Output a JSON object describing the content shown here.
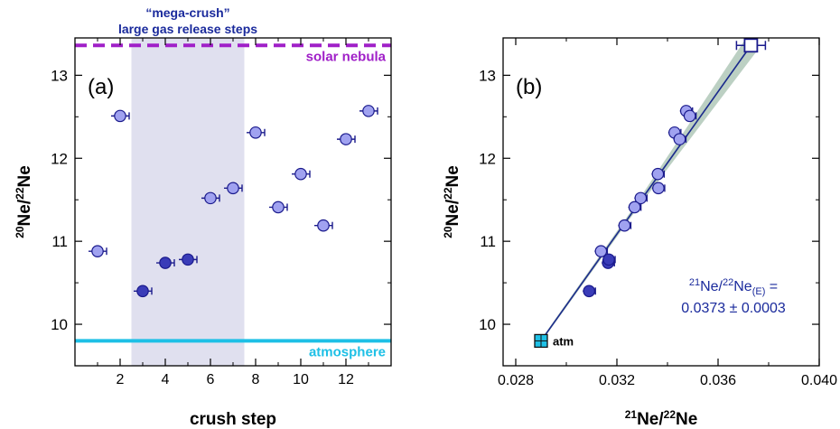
{
  "chart_data": [
    {
      "type": "scatter",
      "panel_label": "(a)",
      "xlabel": "crush step",
      "ylabel_main": "Ne/",
      "ylabel_sup1": "20",
      "ylabel_sup2": "22",
      "ylabel_tail": "Ne",
      "xlim": [
        0,
        14
      ],
      "ylim": [
        9.5,
        13.45
      ],
      "xticks": [
        2,
        4,
        6,
        8,
        10,
        12
      ],
      "yticks": [
        10,
        11,
        12,
        13
      ],
      "grid": false,
      "shaded_region": {
        "x": [
          2.5,
          7.5
        ],
        "label_line1": "“mega-crush”",
        "label_line2": "large gas release steps",
        "color": "#e0e0ef"
      },
      "reference_lines": [
        {
          "name": "solar nebula",
          "y": 13.36,
          "style": "dashed",
          "color": "#a020c8"
        },
        {
          "name": "atmosphere",
          "y": 9.8,
          "style": "solid",
          "color": "#1ec0e6"
        }
      ],
      "series": [
        {
          "light": [
            {
              "x": 1,
              "y": 10.88
            },
            {
              "x": 2,
              "y": 12.51
            },
            {
              "x": 6,
              "y": 11.52
            },
            {
              "x": 7,
              "y": 11.64
            },
            {
              "x": 8,
              "y": 12.31
            },
            {
              "x": 9,
              "y": 11.41
            },
            {
              "x": 10,
              "y": 11.81
            },
            {
              "x": 11,
              "y": 11.19
            },
            {
              "x": 12,
              "y": 12.23
            },
            {
              "x": 13,
              "y": 12.57
            }
          ],
          "dark": [
            {
              "x": 3,
              "y": 10.4
            },
            {
              "x": 4,
              "y": 10.74
            },
            {
              "x": 5,
              "y": 10.78
            }
          ]
        }
      ]
    },
    {
      "type": "scatter",
      "panel_label": "(b)",
      "xlabel_sup1": "21",
      "xlabel_main": "Ne/",
      "xlabel_sup2": "22",
      "xlabel_tail": "Ne",
      "ylabel_main": "Ne/",
      "ylabel_sup1": "20",
      "ylabel_sup2": "22",
      "ylabel_tail": "Ne",
      "xlim": [
        0.0275,
        0.04
      ],
      "ylim": [
        9.5,
        13.45
      ],
      "xticks": [
        0.028,
        0.032,
        0.036,
        0.04
      ],
      "xtick_labels": [
        "0.028",
        "0.032",
        "0.036",
        "0.040"
      ],
      "yticks": [
        10,
        11,
        12,
        13
      ],
      "grid": false,
      "fit_line": {
        "x": [
          0.029,
          0.0373
        ],
        "y": [
          9.8,
          13.36
        ],
        "color": "#1a2a8c",
        "band_color": "#b0c8b8"
      },
      "annotation_line1_sup": "21",
      "annotation_line1_main": "Ne/",
      "annotation_line1_sup2": "22",
      "annotation_line1_tail": "Ne",
      "annotation_line1_sub": "(E)",
      "annotation_line1_eq": " =",
      "annotation_line2": "0.0373 ± 0.0003",
      "atm_label": "atm",
      "endmembers": [
        {
          "name": "atm",
          "x": 0.029,
          "y": 9.8,
          "color": "#1ec0e6"
        },
        {
          "name": "E",
          "x": 0.0373,
          "y": 13.36,
          "color": "#ffffff"
        }
      ],
      "series": [
        {
          "light": [
            {
              "x": 0.03137,
              "y": 10.88
            },
            {
              "x": 0.03474,
              "y": 12.57
            },
            {
              "x": 0.03488,
              "y": 12.51
            },
            {
              "x": 0.03428,
              "y": 12.31
            },
            {
              "x": 0.03448,
              "y": 12.23
            },
            {
              "x": 0.03362,
              "y": 11.81
            },
            {
              "x": 0.03364,
              "y": 11.64
            },
            {
              "x": 0.03294,
              "y": 11.52
            },
            {
              "x": 0.0327,
              "y": 11.41
            },
            {
              "x": 0.0323,
              "y": 11.19
            }
          ],
          "dark": [
            {
              "x": 0.0309,
              "y": 10.4
            },
            {
              "x": 0.03165,
              "y": 10.74
            },
            {
              "x": 0.03168,
              "y": 10.78
            }
          ]
        }
      ]
    }
  ],
  "colors": {
    "light_point": "#a0a2f0",
    "dark_point": "#3a3cb8",
    "point_stroke": "#1a1a8c",
    "annotation_text": "#1a2a9c",
    "solar_text": "#a020c8",
    "atm_text": "#1ec0e6"
  }
}
